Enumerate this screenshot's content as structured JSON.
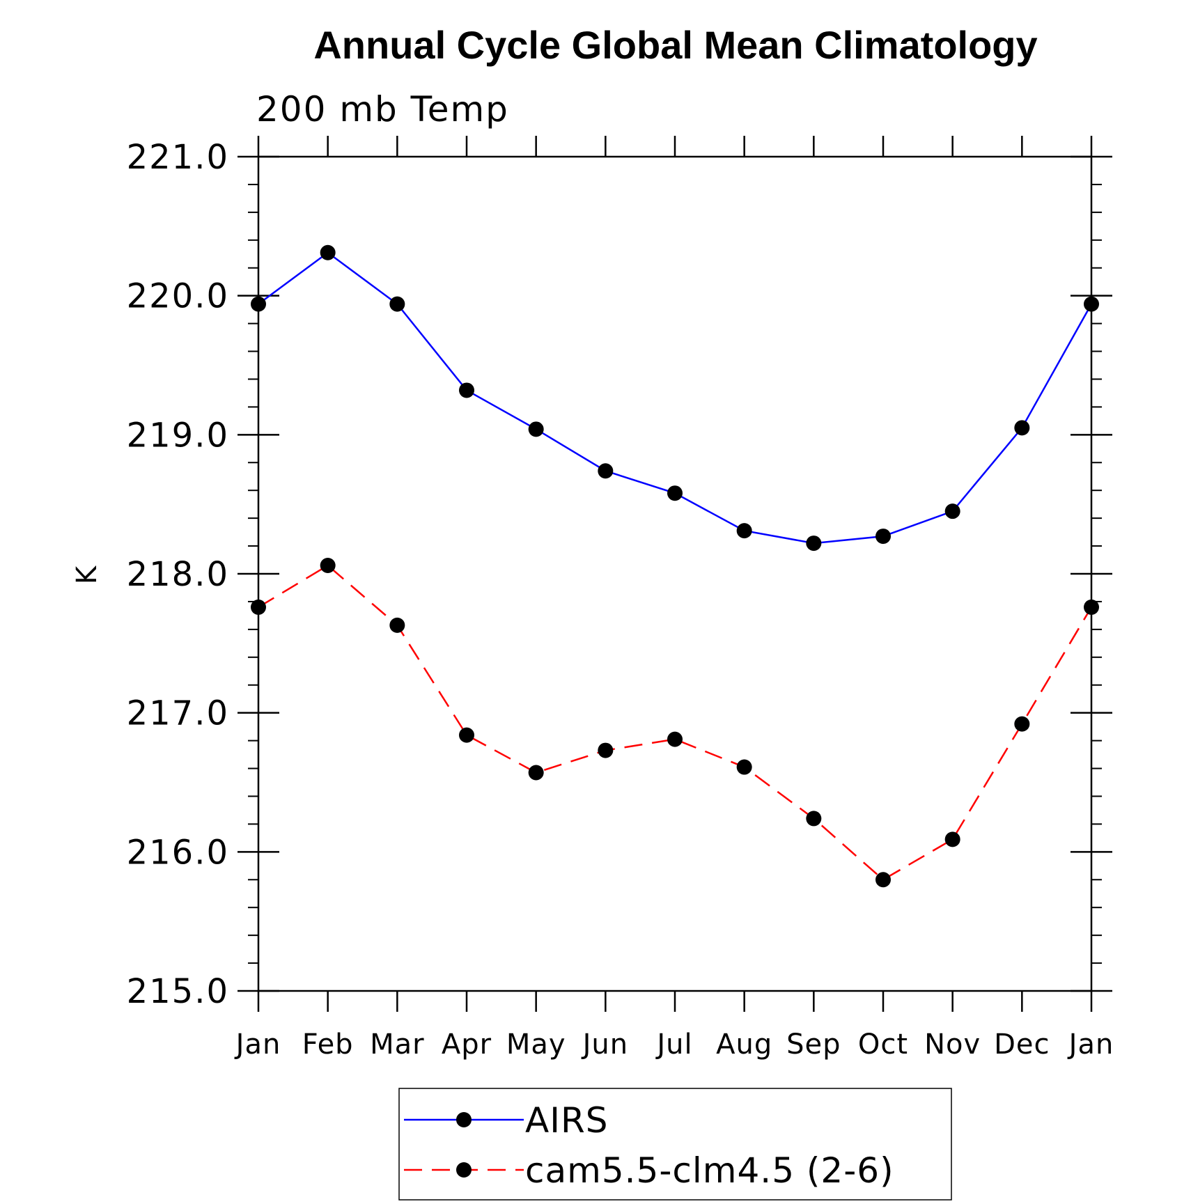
{
  "chart_data": {
    "type": "line",
    "title": "Annual Cycle Global Mean Climatology",
    "subtitle": "200 mb Temp",
    "xlabel": "",
    "ylabel": "K",
    "categories": [
      "Jan",
      "Feb",
      "Mar",
      "Apr",
      "May",
      "Jun",
      "Jul",
      "Aug",
      "Sep",
      "Oct",
      "Nov",
      "Dec",
      "Jan"
    ],
    "y_ticks": [
      "215.0",
      "216.0",
      "217.0",
      "218.0",
      "219.0",
      "220.0",
      "221.0"
    ],
    "ylim": [
      215.0,
      221.0
    ],
    "grid": false,
    "legend_position": "bottom-center",
    "series": [
      {
        "name": "AIRS",
        "color": "#0000ff",
        "line_style": "solid",
        "values": [
          219.94,
          220.31,
          219.94,
          219.32,
          219.04,
          218.74,
          218.58,
          218.31,
          218.22,
          218.27,
          218.45,
          219.05,
          219.94
        ]
      },
      {
        "name": "cam5.5-clm4.5 (2-6)",
        "color": "#ff0000",
        "line_style": "dashed",
        "values": [
          217.76,
          218.06,
          217.63,
          216.84,
          216.57,
          216.73,
          216.81,
          216.61,
          216.24,
          215.8,
          216.09,
          216.92,
          217.76
        ]
      }
    ]
  }
}
